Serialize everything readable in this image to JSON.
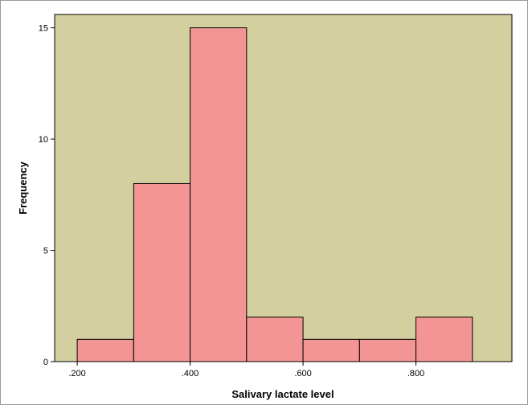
{
  "chart_data": {
    "type": "bar",
    "subtype": "histogram",
    "xlabel": "Salivary lactate level",
    "ylabel": "Frequency",
    "bins": [
      {
        "start": 0.2,
        "end": 0.3,
        "count": 1
      },
      {
        "start": 0.3,
        "end": 0.4,
        "count": 8
      },
      {
        "start": 0.4,
        "end": 0.5,
        "count": 15
      },
      {
        "start": 0.5,
        "end": 0.6,
        "count": 2
      },
      {
        "start": 0.6,
        "end": 0.7,
        "count": 1
      },
      {
        "start": 0.7,
        "end": 0.8,
        "count": 1
      },
      {
        "start": 0.8,
        "end": 0.9,
        "count": 2
      }
    ],
    "x_ticks": [
      {
        "value": 0.2,
        "label": ".200"
      },
      {
        "value": 0.4,
        "label": ".400"
      },
      {
        "value": 0.6,
        "label": ".600"
      },
      {
        "value": 0.8,
        "label": ".800"
      }
    ],
    "y_ticks": [
      {
        "value": 0,
        "label": "0"
      },
      {
        "value": 5,
        "label": "5"
      },
      {
        "value": 10,
        "label": "10"
      },
      {
        "value": 15,
        "label": "15"
      }
    ],
    "xlim": [
      0.16,
      0.97
    ],
    "ylim": [
      0,
      15.6
    ],
    "grid": false,
    "colors": {
      "plot_background": "#d4cf9e",
      "bar_fill": "#f49595",
      "bar_stroke": "#000000"
    }
  }
}
